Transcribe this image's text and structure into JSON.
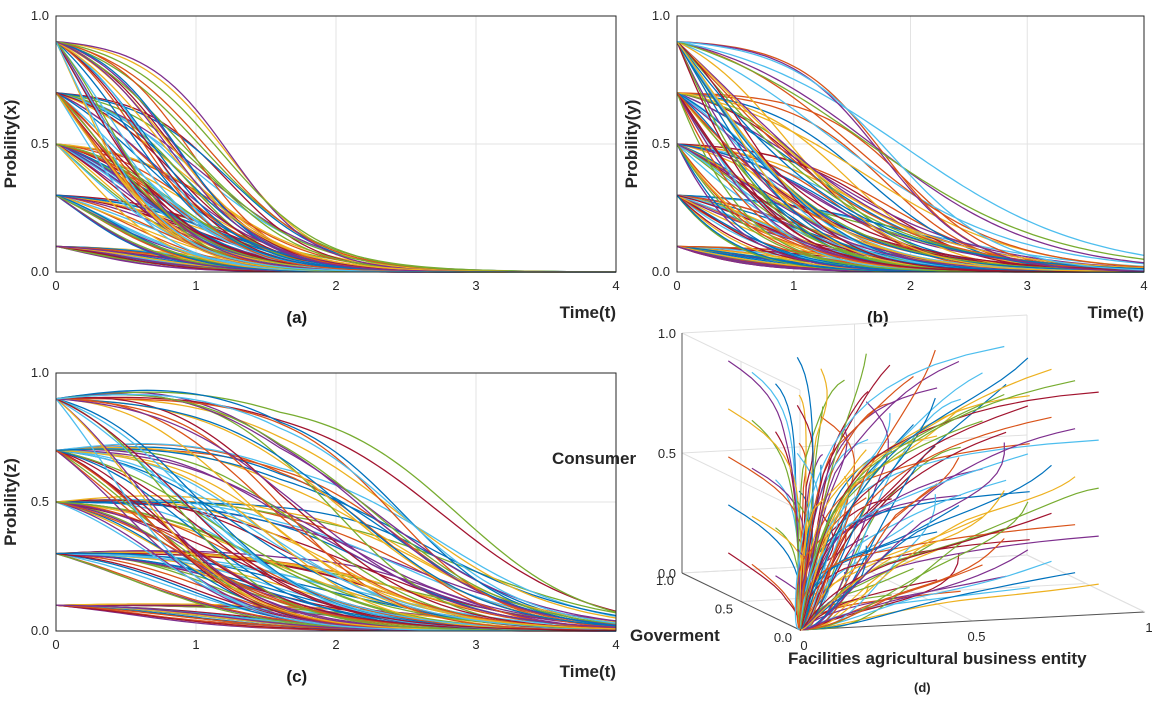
{
  "chart_data": [
    {
      "id": "a",
      "type": "line",
      "panel_label": "(a)",
      "xlabel": "Time(t)",
      "ylabel": "Probility(x)",
      "xlim": [
        0,
        4
      ],
      "ylim": [
        0,
        1
      ],
      "xticks": [
        "0",
        "1",
        "2",
        "3",
        "4"
      ],
      "yticks": [
        "0.0",
        "0.5",
        "1.0"
      ],
      "grid": true,
      "initial_values": [
        0.1,
        0.3,
        0.5,
        0.7,
        0.9
      ],
      "series_per_start": 25,
      "decay_range_midpoint": [
        0.05,
        1.25
      ],
      "decay_range_steepness": [
        2.2,
        3.4
      ]
    },
    {
      "id": "b",
      "type": "line",
      "panel_label": "(b)",
      "xlabel": "Time(t)",
      "ylabel": "Probility(y)",
      "xlim": [
        0,
        4
      ],
      "ylim": [
        0,
        1
      ],
      "xticks": [
        "0",
        "1",
        "2",
        "3",
        "4"
      ],
      "yticks": [
        "0.0",
        "0.5",
        "1.0"
      ],
      "grid": true,
      "initial_values": [
        0.1,
        0.3,
        0.5,
        0.7,
        0.9
      ],
      "series_per_start": 25,
      "decay_range_midpoint": [
        -0.6,
        2.0
      ],
      "decay_range_steepness": [
        1.2,
        2.6
      ]
    },
    {
      "id": "c",
      "type": "line",
      "panel_label": "(c)",
      "xlabel": "Time(t)",
      "ylabel": "Probility(z)",
      "xlim": [
        0,
        4
      ],
      "ylim": [
        0,
        1
      ],
      "xticks": [
        "0",
        "1",
        "2",
        "3",
        "4"
      ],
      "yticks": [
        "0.0",
        "0.5",
        "1.0"
      ],
      "grid": true,
      "initial_values": [
        0.1,
        0.3,
        0.5,
        0.7,
        0.9
      ],
      "series_per_start": 25,
      "decay_range_midpoint": [
        0.3,
        2.9
      ],
      "decay_range_steepness": [
        1.6,
        2.6
      ]
    },
    {
      "id": "d",
      "type": "line",
      "panel_label": "(d)",
      "projection": "3d",
      "xlabel": "Facilities agricultural business entity",
      "ylabel": "Goverment",
      "zlabel": "Consumer",
      "xlim": [
        0,
        1
      ],
      "ylim": [
        0,
        1
      ],
      "zlim": [
        0,
        1
      ],
      "xticks": [
        "0",
        "0.5",
        "1"
      ],
      "yticks": [
        "0.0",
        "0.5",
        "1.0"
      ],
      "zticks": [
        "0.0",
        "0.5",
        "1.0"
      ],
      "grid": true,
      "trajectories_converge_to": [
        0,
        0,
        0
      ]
    }
  ],
  "colors": [
    "#0072BD",
    "#D95319",
    "#EDB120",
    "#7E2F8E",
    "#77AC30",
    "#4DBEEE",
    "#A2142F"
  ]
}
